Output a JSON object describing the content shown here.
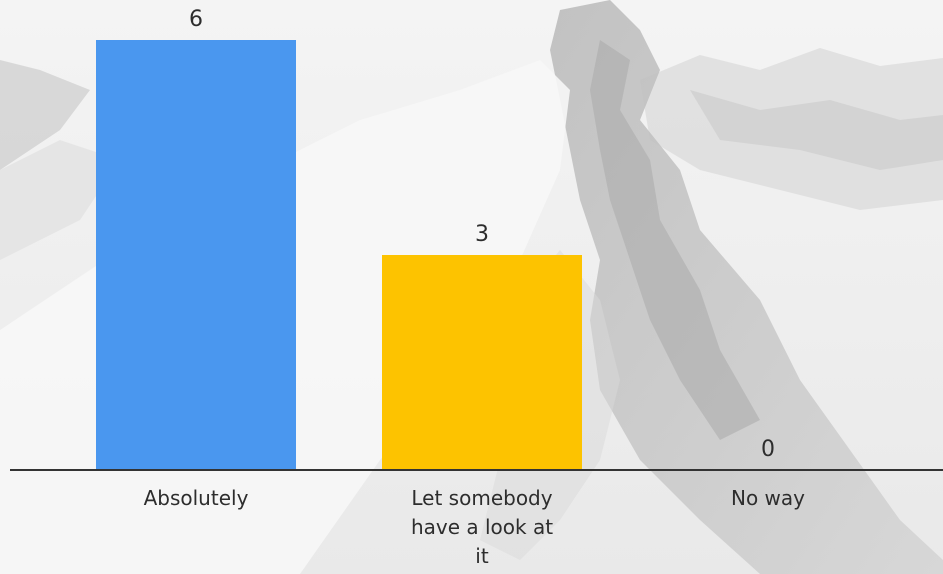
{
  "chart_data": {
    "type": "bar",
    "title": "",
    "xlabel": "",
    "ylabel": "",
    "ylim": [
      0,
      6
    ],
    "grid": false,
    "legend": "none",
    "categories": [
      "Absolutely",
      "Let somebody have a look at it",
      "No way"
    ],
    "category_label_lines": [
      [
        "Absolutely"
      ],
      [
        "Let somebody",
        "have a look at",
        "it"
      ],
      [
        "No way"
      ]
    ],
    "values": [
      6,
      3,
      0
    ],
    "value_labels": [
      "6",
      "3",
      "0"
    ],
    "colors": [
      "#4a97ef",
      "#fdc300",
      "#9e9e9e"
    ],
    "axis_color": "#333333"
  }
}
